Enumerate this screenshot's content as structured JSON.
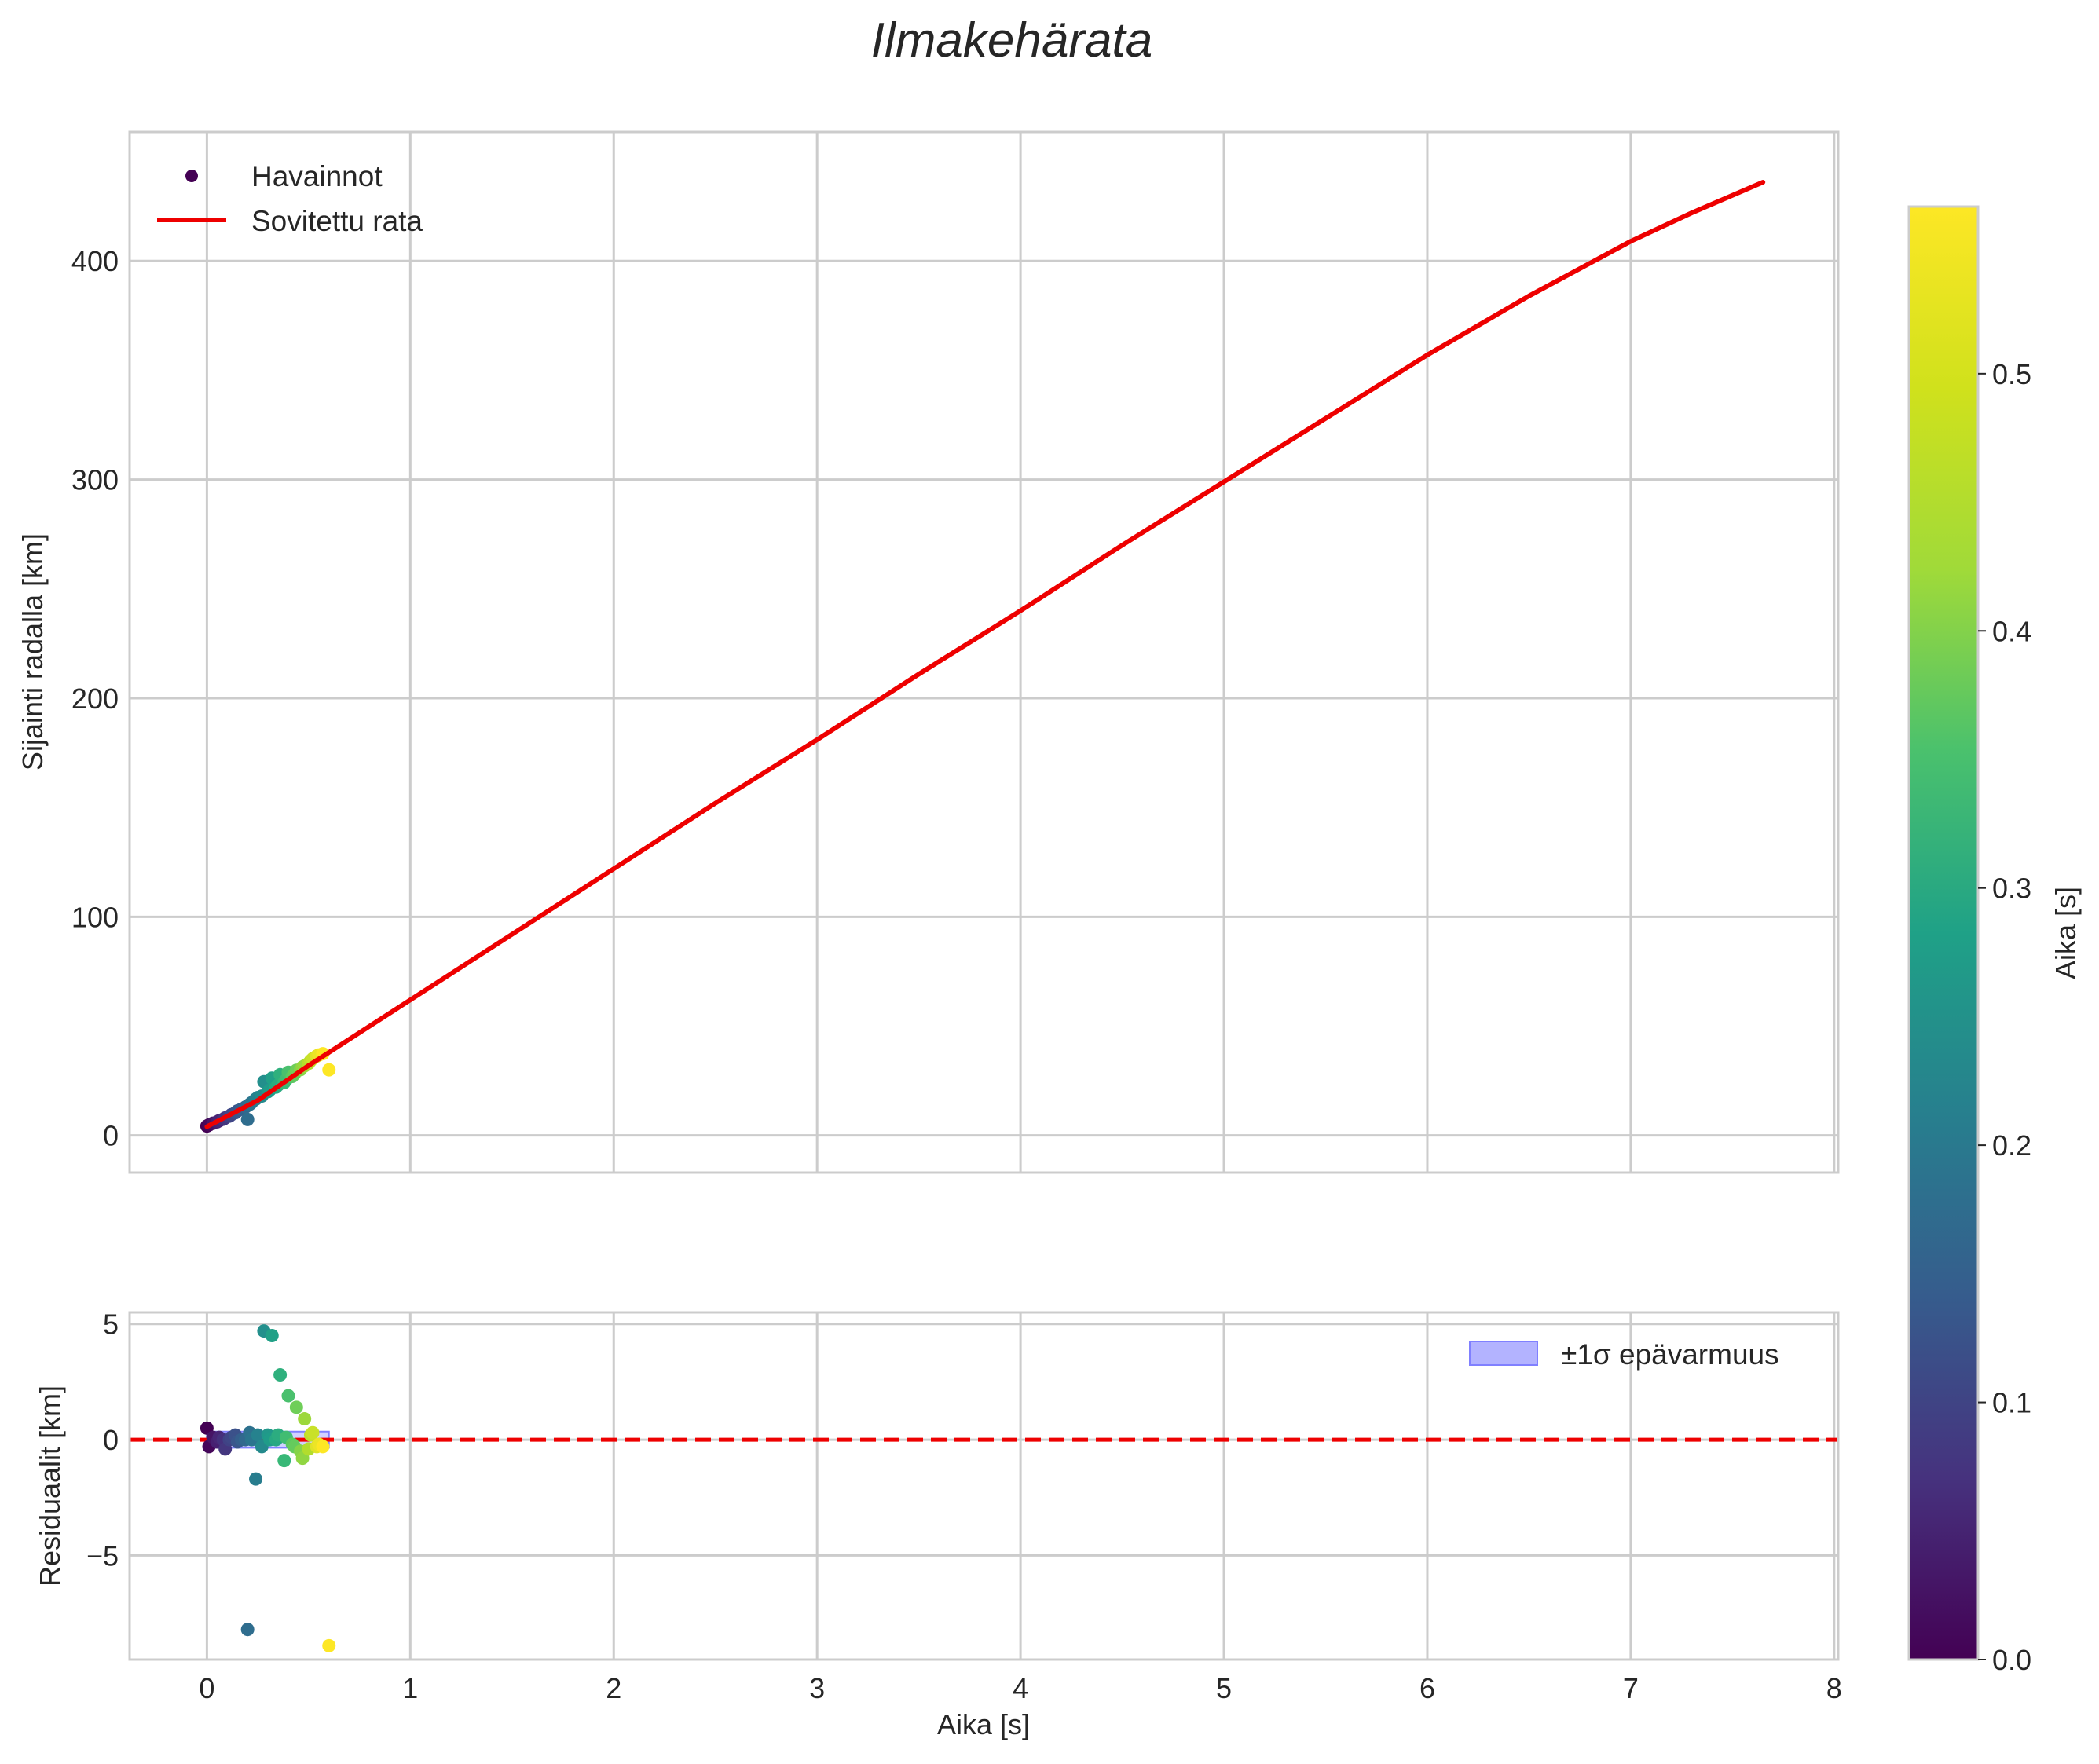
{
  "chart_data": [
    {
      "id": "main",
      "type": "scatter+line",
      "title": "Ilmakehärata",
      "xlabel": "",
      "ylabel": "Sijainti radalla [km]",
      "xlim": [
        -0.38,
        8.02
      ],
      "ylim": [
        -17,
        459
      ],
      "xticks": [
        0,
        1,
        2,
        3,
        4,
        5,
        6,
        7,
        8
      ],
      "yticks": [
        0,
        100,
        200,
        300,
        400
      ],
      "grid": true,
      "legend": {
        "position": "top-left",
        "entries": [
          "Havainnot",
          "Sovitettu rata"
        ]
      },
      "series": [
        {
          "name": "Havainnot",
          "kind": "scatter",
          "colored_by": "Aika [s]",
          "points": [
            [
              0.0,
              4.3
            ],
            [
              0.01,
              4.8
            ],
            [
              0.03,
              5.6
            ],
            [
              0.05,
              6.2
            ],
            [
              0.06,
              6.7
            ],
            [
              0.08,
              7.4
            ],
            [
              0.09,
              8.0
            ],
            [
              0.11,
              8.8
            ],
            [
              0.12,
              9.5
            ],
            [
              0.14,
              10.4
            ],
            [
              0.15,
              11.2
            ],
            [
              0.17,
              12.0
            ],
            [
              0.19,
              13.0
            ],
            [
              0.2,
              7.3
            ],
            [
              0.21,
              14.2
            ],
            [
              0.22,
              15.0
            ],
            [
              0.24,
              16.6
            ],
            [
              0.25,
              17.3
            ],
            [
              0.27,
              18.0
            ],
            [
              0.28,
              24.6
            ],
            [
              0.3,
              20.0
            ],
            [
              0.31,
              20.8
            ],
            [
              0.32,
              26.2
            ],
            [
              0.34,
              22.1
            ],
            [
              0.35,
              23.0
            ],
            [
              0.36,
              27.8
            ],
            [
              0.38,
              24.2
            ],
            [
              0.39,
              25.5
            ],
            [
              0.4,
              28.9
            ],
            [
              0.42,
              27.0
            ],
            [
              0.43,
              28.0
            ],
            [
              0.44,
              29.8
            ],
            [
              0.46,
              30.1
            ],
            [
              0.47,
              31.3
            ],
            [
              0.48,
              31.8
            ],
            [
              0.5,
              33.0
            ],
            [
              0.51,
              34.2
            ],
            [
              0.52,
              35.1
            ],
            [
              0.54,
              36.3
            ],
            [
              0.55,
              36.8
            ],
            [
              0.57,
              37.4
            ],
            [
              0.6,
              30.0
            ]
          ]
        },
        {
          "name": "Sovitettu rata",
          "kind": "line",
          "color": "#ee0000",
          "points": [
            [
              0,
              4
            ],
            [
              0.25,
              16
            ],
            [
              0.5,
              32
            ],
            [
              1,
              62
            ],
            [
              1.5,
              92
            ],
            [
              2,
              122
            ],
            [
              2.5,
              152
            ],
            [
              3,
              181
            ],
            [
              3.5,
              211
            ],
            [
              4,
              240
            ],
            [
              4.5,
              270
            ],
            [
              5,
              299
            ],
            [
              5.5,
              328
            ],
            [
              6,
              357
            ],
            [
              6.5,
              384
            ],
            [
              7,
              409
            ],
            [
              7.3,
              422
            ],
            [
              7.65,
              436
            ]
          ]
        }
      ]
    },
    {
      "id": "residuals",
      "type": "scatter",
      "title": "",
      "xlabel": "Aika [s]",
      "ylabel": "Residuaalit [km]",
      "xlim": [
        -0.38,
        8.02
      ],
      "ylim": [
        -9.5,
        5.5
      ],
      "xticks": [
        0,
        1,
        2,
        3,
        4,
        5,
        6,
        7,
        8
      ],
      "xtick_labels": [
        "0",
        "1",
        "2",
        "3",
        "4",
        "5",
        "6",
        "7",
        "8"
      ],
      "yticks": [
        5,
        0,
        -5
      ],
      "ytick_labels": [
        "5",
        "0",
        "−5"
      ],
      "grid": true,
      "zero_line": {
        "y": 0,
        "style": "dashed",
        "color": "#ee0000"
      },
      "uncertainty_band": {
        "x_range": [
          0,
          0.6
        ],
        "y_range": [
          -0.35,
          0.35
        ],
        "color": "#b3b3ff",
        "label": "±1σ epävarmuus"
      },
      "legend": {
        "position": "top-right",
        "entries": [
          "±1σ epävarmuus"
        ]
      },
      "points": [
        [
          0.0,
          0.5
        ],
        [
          0.01,
          -0.3
        ],
        [
          0.03,
          0.1
        ],
        [
          0.05,
          -0.1
        ],
        [
          0.06,
          0.1
        ],
        [
          0.08,
          0.0
        ],
        [
          0.09,
          -0.4
        ],
        [
          0.11,
          0.0
        ],
        [
          0.12,
          0.1
        ],
        [
          0.14,
          0.2
        ],
        [
          0.15,
          -0.1
        ],
        [
          0.17,
          0.0
        ],
        [
          0.19,
          0.0
        ],
        [
          0.2,
          -8.2
        ],
        [
          0.21,
          0.3
        ],
        [
          0.22,
          0.0
        ],
        [
          0.24,
          -1.7
        ],
        [
          0.25,
          0.2
        ],
        [
          0.27,
          -0.3
        ],
        [
          0.28,
          4.7
        ],
        [
          0.3,
          0.2
        ],
        [
          0.31,
          0.0
        ],
        [
          0.32,
          4.5
        ],
        [
          0.34,
          0.0
        ],
        [
          0.35,
          0.2
        ],
        [
          0.36,
          2.8
        ],
        [
          0.38,
          -0.9
        ],
        [
          0.39,
          0.1
        ],
        [
          0.4,
          1.9
        ],
        [
          0.42,
          -0.2
        ],
        [
          0.43,
          -0.3
        ],
        [
          0.44,
          1.4
        ],
        [
          0.46,
          -0.5
        ],
        [
          0.47,
          -0.8
        ],
        [
          0.48,
          0.9
        ],
        [
          0.5,
          -0.4
        ],
        [
          0.51,
          0.2
        ],
        [
          0.52,
          0.3
        ],
        [
          0.54,
          -0.3
        ],
        [
          0.55,
          -0.2
        ],
        [
          0.57,
          -0.3
        ],
        [
          0.6,
          -8.9
        ]
      ]
    }
  ],
  "colorbar": {
    "label": "Aika [s]",
    "cmap": "viridis",
    "range": [
      0,
      0.565
    ],
    "ticks": [
      0.0,
      0.1,
      0.2,
      0.3,
      0.4,
      0.5
    ],
    "tick_labels": [
      "0.0",
      "0.1",
      "0.2",
      "0.3",
      "0.4",
      "0.5"
    ]
  },
  "colors": {
    "grid": "#cccccc",
    "spine": "#cccccc",
    "fit_line": "#ee0000",
    "band_fill": "#b3b3ff",
    "band_edge": "#8080ff"
  }
}
